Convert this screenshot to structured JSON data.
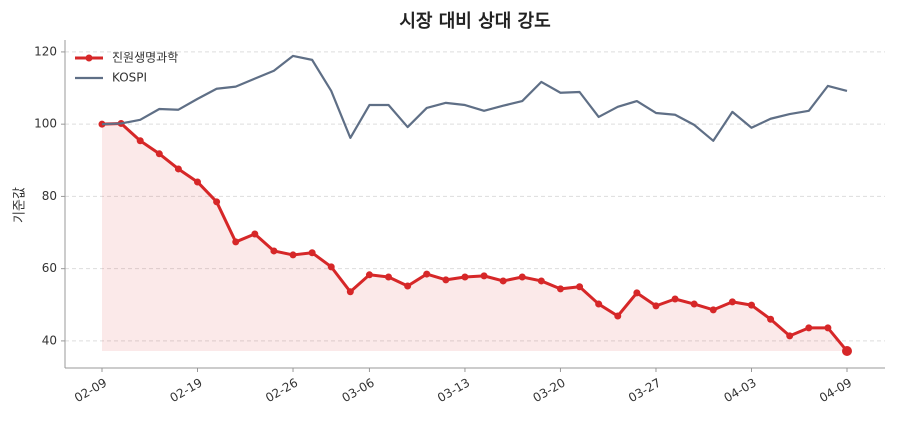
{
  "chart_data": {
    "type": "line",
    "title": "시장 대비 상대 강도",
    "y_label": "기준값",
    "categories": [
      "02-09",
      null,
      null,
      null,
      null,
      "02-19",
      null,
      null,
      null,
      null,
      "02-26",
      null,
      null,
      null,
      "03-06",
      null,
      null,
      null,
      null,
      "03-13",
      null,
      null,
      null,
      null,
      "03-20",
      null,
      null,
      null,
      null,
      "03-27",
      null,
      null,
      null,
      null,
      "04-03",
      null,
      null,
      null,
      null,
      "04-09"
    ],
    "series": [
      {
        "name": "진원생명과학",
        "color": "#d62728",
        "fill": true,
        "values": [
          100,
          100.2,
          95.4,
          91.8,
          87.6,
          84.0,
          78.5,
          67.4,
          69.6,
          64.9,
          63.8,
          64.4,
          60.5,
          53.6,
          58.3,
          57.7,
          55.2,
          58.5,
          56.9,
          57.7,
          58.0,
          56.6,
          57.7,
          56.6,
          54.4,
          55.0,
          50.2,
          46.9,
          53.3,
          49.7,
          51.6,
          50.2,
          48.6,
          50.8,
          49.9,
          46.0,
          41.4,
          43.6,
          43.6,
          37.2
        ]
      },
      {
        "name": "KOSPI",
        "color": "#5f6f86",
        "values": [
          100,
          100.2,
          101.2,
          104.2,
          104.0,
          107.0,
          109.8,
          110.4,
          112.6,
          114.8,
          118.9,
          117.8,
          109.2,
          96.2,
          105.3,
          105.3,
          99.2,
          104.5,
          105.9,
          105.3,
          103.7,
          105.1,
          106.4,
          111.7,
          108.7,
          108.9,
          102.0,
          104.8,
          106.4,
          103.1,
          102.6,
          99.8,
          95.4,
          103.4,
          99.0,
          101.5,
          102.8,
          103.7,
          110.6,
          109.2
        ]
      }
    ],
    "ylim": [
      32.5,
      123.3
    ],
    "yticks": [
      40,
      60,
      80,
      100,
      120
    ],
    "grid": true,
    "legend": "upper left"
  }
}
